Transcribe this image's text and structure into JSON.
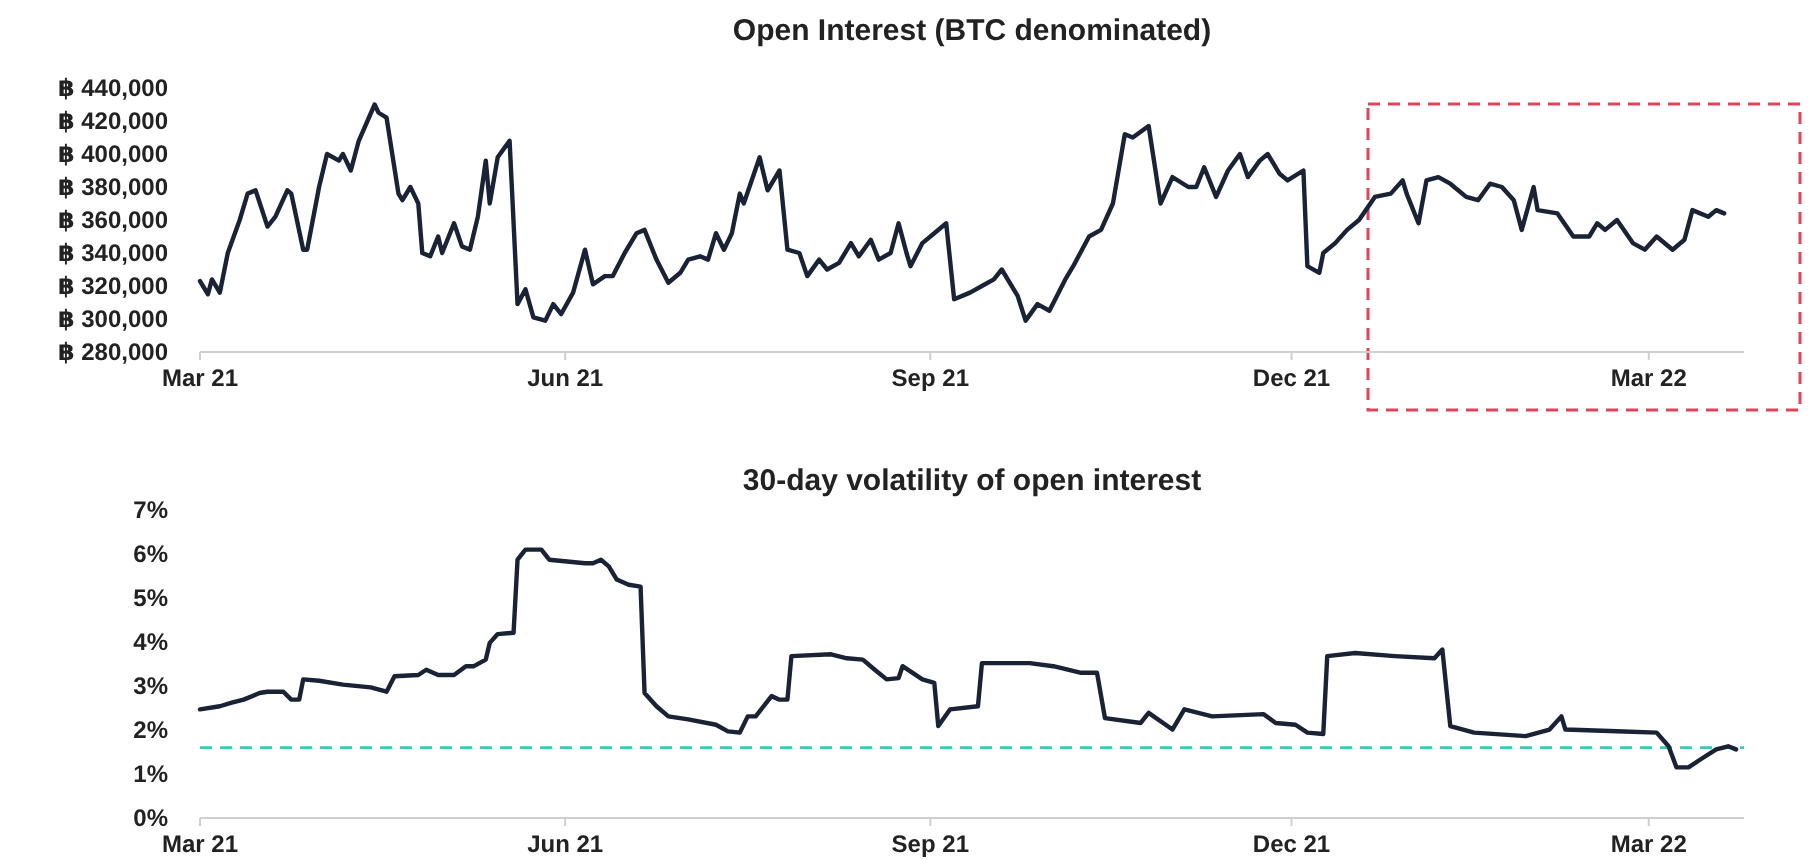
{
  "chart_data": [
    {
      "type": "line",
      "title": "Open Interest (BTC denominated)",
      "x": [
        "2021-03-01",
        "2021-03-03",
        "2021-03-04",
        "2021-03-06",
        "2021-03-08",
        "2021-03-11",
        "2021-03-13",
        "2021-03-15",
        "2021-03-18",
        "2021-03-20",
        "2021-03-23",
        "2021-03-24",
        "2021-03-27",
        "2021-03-28",
        "2021-03-31",
        "2021-04-02",
        "2021-04-05",
        "2021-04-06",
        "2021-04-08",
        "2021-04-10",
        "2021-04-14",
        "2021-04-15",
        "2021-04-17",
        "2021-04-20",
        "2021-04-21",
        "2021-04-23",
        "2021-04-25",
        "2021-04-26",
        "2021-04-28",
        "2021-04-30",
        "2021-05-01",
        "2021-05-04",
        "2021-05-06",
        "2021-05-08",
        "2021-05-10",
        "2021-05-12",
        "2021-05-13",
        "2021-05-15",
        "2021-05-18",
        "2021-05-20",
        "2021-05-22",
        "2021-05-24",
        "2021-05-27",
        "2021-05-29",
        "2021-05-31",
        "2021-06-03",
        "2021-06-06",
        "2021-06-08",
        "2021-06-11",
        "2021-06-13",
        "2021-06-16",
        "2021-06-19",
        "2021-06-21",
        "2021-06-24",
        "2021-06-27",
        "2021-06-30",
        "2021-07-02",
        "2021-07-05",
        "2021-07-07",
        "2021-07-09",
        "2021-07-11",
        "2021-07-13",
        "2021-07-15",
        "2021-07-16",
        "2021-07-20",
        "2021-07-22",
        "2021-07-25",
        "2021-07-27",
        "2021-07-30",
        "2021-08-01",
        "2021-08-04",
        "2021-08-06",
        "2021-08-09",
        "2021-08-12",
        "2021-08-14",
        "2021-08-17",
        "2021-08-19",
        "2021-08-22",
        "2021-08-24",
        "2021-08-26",
        "2021-08-27",
        "2021-08-30",
        "2021-09-02",
        "2021-09-05",
        "2021-09-07",
        "2021-09-11",
        "2021-09-14",
        "2021-09-17",
        "2021-09-19",
        "2021-09-23",
        "2021-09-25",
        "2021-09-28",
        "2021-10-01",
        "2021-10-05",
        "2021-10-07",
        "2021-10-11",
        "2021-10-14",
        "2021-10-17",
        "2021-10-20",
        "2021-10-22",
        "2021-10-26",
        "2021-10-29",
        "2021-11-01",
        "2021-11-05",
        "2021-11-07",
        "2021-11-09",
        "2021-11-12",
        "2021-11-15",
        "2021-11-18",
        "2021-11-20",
        "2021-11-23",
        "2021-11-25",
        "2021-11-28",
        "2021-11-30",
        "2021-12-04",
        "2021-12-05",
        "2021-12-08",
        "2021-12-09",
        "2021-12-12",
        "2021-12-15",
        "2021-12-18",
        "2021-12-22",
        "2021-12-26",
        "2021-12-29",
        "2021-12-30",
        "2022-01-02",
        "2022-01-04",
        "2022-01-07",
        "2022-01-10",
        "2022-01-14",
        "2022-01-17",
        "2022-01-20",
        "2022-01-23",
        "2022-01-26",
        "2022-01-28",
        "2022-01-31",
        "2022-02-01",
        "2022-02-06",
        "2022-02-10",
        "2022-02-14",
        "2022-02-16",
        "2022-02-18",
        "2022-02-21",
        "2022-02-25",
        "2022-02-28",
        "2022-03-03",
        "2022-03-07",
        "2022-03-10",
        "2022-03-12",
        "2022-03-16",
        "2022-03-18",
        "2022-03-20"
      ],
      "series": [
        {
          "color": "#1a2236",
          "values": [
            323000,
            315000,
            324000,
            316000,
            340000,
            360000,
            376000,
            378000,
            356000,
            362000,
            378000,
            376000,
            342000,
            342000,
            380000,
            400000,
            396000,
            400000,
            390000,
            408000,
            430000,
            425000,
            422000,
            376000,
            372000,
            380000,
            370000,
            340000,
            338000,
            350000,
            340000,
            358000,
            344000,
            342000,
            362000,
            396000,
            370000,
            398000,
            408000,
            309000,
            318000,
            301000,
            299000,
            309000,
            303000,
            316000,
            342000,
            321000,
            326000,
            326000,
            340000,
            352000,
            354000,
            336000,
            322000,
            328000,
            336000,
            338000,
            336000,
            352000,
            342000,
            352000,
            376000,
            370000,
            398000,
            378000,
            390000,
            342000,
            340000,
            326000,
            336000,
            330000,
            334000,
            346000,
            338000,
            348000,
            336000,
            340000,
            358000,
            340000,
            332000,
            346000,
            352000,
            358000,
            312000,
            316000,
            320000,
            324000,
            330000,
            314000,
            299000,
            309000,
            305000,
            324000,
            332000,
            350000,
            354000,
            370000,
            412000,
            410000,
            417000,
            370000,
            386000,
            380000,
            380000,
            392000,
            374000,
            390000,
            400000,
            386000,
            396000,
            400000,
            388000,
            384000,
            390000,
            332000,
            328000,
            340000,
            346000,
            354000,
            360000,
            374000,
            376000,
            384000,
            376000,
            358000,
            384000,
            386000,
            382000,
            374000,
            372000,
            382000,
            380000,
            372000,
            354000,
            380000,
            366000,
            364000,
            350000,
            350000,
            358000,
            354000,
            360000,
            346000,
            342000,
            350000,
            342000,
            348000,
            366000,
            362000,
            366000,
            364000
          ]
        }
      ],
      "xlim": [
        "2021-03-01",
        "2022-03-25"
      ],
      "xticks": [
        {
          "value": "2021-03-01",
          "label": "Mar 21"
        },
        {
          "value": "2021-06-01",
          "label": "Jun 21"
        },
        {
          "value": "2021-09-01",
          "label": "Sep 21"
        },
        {
          "value": "2021-12-01",
          "label": "Dec 21"
        },
        {
          "value": "2022-03-01",
          "label": "Mar 22"
        }
      ],
      "ylim": [
        280000,
        440000
      ],
      "yticks": [
        {
          "value": 280000,
          "label": "฿ 280,000"
        },
        {
          "value": 300000,
          "label": "฿ 300,000"
        },
        {
          "value": 320000,
          "label": "฿ 320,000"
        },
        {
          "value": 340000,
          "label": "฿ 340,000"
        },
        {
          "value": 360000,
          "label": "฿ 360,000"
        },
        {
          "value": 380000,
          "label": "฿ 380,000"
        },
        {
          "value": 400000,
          "label": "฿ 400,000"
        },
        {
          "value": 420000,
          "label": "฿ 420,000"
        },
        {
          "value": 440000,
          "label": "฿ 440,000"
        }
      ]
    },
    {
      "type": "line",
      "title": "30-day volatility of open interest",
      "x": [
        "2021-03-01",
        "2021-03-06",
        "2021-03-09",
        "2021-03-12",
        "2021-03-16",
        "2021-03-18",
        "2021-03-22",
        "2021-03-24",
        "2021-03-26",
        "2021-03-27",
        "2021-03-31",
        "2021-04-06",
        "2021-04-13",
        "2021-04-17",
        "2021-04-19",
        "2021-04-25",
        "2021-04-27",
        "2021-04-30",
        "2021-05-04",
        "2021-05-07",
        "2021-05-09",
        "2021-05-12",
        "2021-05-13",
        "2021-05-15",
        "2021-05-19",
        "2021-05-20",
        "2021-05-22",
        "2021-05-26",
        "2021-05-28",
        "2021-06-06",
        "2021-06-08",
        "2021-06-10",
        "2021-06-12",
        "2021-06-14",
        "2021-06-17",
        "2021-06-20",
        "2021-06-21",
        "2021-06-24",
        "2021-06-27",
        "2021-07-02",
        "2021-07-09",
        "2021-07-12",
        "2021-07-15",
        "2021-07-17",
        "2021-07-19",
        "2021-07-23",
        "2021-07-25",
        "2021-07-27",
        "2021-07-28",
        "2021-08-07",
        "2021-08-11",
        "2021-08-15",
        "2021-08-18",
        "2021-08-21",
        "2021-08-24",
        "2021-08-25",
        "2021-08-30",
        "2021-09-02",
        "2021-09-03",
        "2021-09-06",
        "2021-09-13",
        "2021-09-14",
        "2021-09-26",
        "2021-10-02",
        "2021-10-09",
        "2021-10-13",
        "2021-10-15",
        "2021-10-24",
        "2021-10-26",
        "2021-11-01",
        "2021-11-04",
        "2021-11-11",
        "2021-11-24",
        "2021-11-27",
        "2021-12-02",
        "2021-12-05",
        "2021-12-09",
        "2021-12-10",
        "2021-12-17",
        "2021-12-27",
        "2022-01-06",
        "2022-01-08",
        "2022-01-10",
        "2022-01-16",
        "2022-01-29",
        "2022-02-04",
        "2022-02-07",
        "2022-02-08",
        "2022-02-21",
        "2022-03-03",
        "2022-03-06",
        "2022-03-08",
        "2022-03-11",
        "2022-03-14",
        "2022-03-18",
        "2022-03-21",
        "2022-03-23"
      ],
      "series": [
        {
          "color": "#1a2236",
          "values": [
            2.47,
            2.54,
            2.62,
            2.69,
            2.84,
            2.87,
            2.87,
            2.69,
            2.69,
            3.15,
            3.12,
            3.03,
            2.97,
            2.87,
            3.22,
            3.25,
            3.37,
            3.25,
            3.25,
            3.45,
            3.45,
            3.6,
            3.98,
            4.18,
            4.21,
            5.87,
            6.1,
            6.1,
            5.87,
            5.79,
            5.79,
            5.87,
            5.72,
            5.42,
            5.3,
            5.26,
            2.84,
            2.54,
            2.31,
            2.24,
            2.12,
            1.97,
            1.94,
            2.31,
            2.31,
            2.77,
            2.69,
            2.69,
            3.68,
            3.72,
            3.63,
            3.6,
            3.37,
            3.15,
            3.18,
            3.45,
            3.15,
            3.07,
            2.09,
            2.47,
            2.54,
            3.52,
            3.52,
            3.45,
            3.3,
            3.3,
            2.27,
            2.16,
            2.39,
            2.01,
            2.47,
            2.31,
            2.36,
            2.16,
            2.12,
            1.94,
            1.91,
            3.68,
            3.75,
            3.68,
            3.63,
            3.83,
            2.09,
            1.94,
            1.86,
            2.01,
            2.31,
            2.01,
            1.97,
            1.94,
            1.63,
            1.15,
            1.15,
            1.33,
            1.56,
            1.63,
            1.56
          ]
        }
      ],
      "xlim": [
        "2021-03-01",
        "2022-03-25"
      ],
      "xticks": [
        {
          "value": "2021-03-01",
          "label": "Mar 21"
        },
        {
          "value": "2021-06-01",
          "label": "Jun 21"
        },
        {
          "value": "2021-09-01",
          "label": "Sep 21"
        },
        {
          "value": "2021-12-01",
          "label": "Dec 21"
        },
        {
          "value": "2022-03-01",
          "label": "Mar 22"
        }
      ],
      "ylim": [
        0,
        7
      ],
      "yticks": [
        {
          "value": 0,
          "label": "0%"
        },
        {
          "value": 1,
          "label": "1%"
        },
        {
          "value": 2,
          "label": "2%"
        },
        {
          "value": 3,
          "label": "3%"
        },
        {
          "value": 4,
          "label": "4%"
        },
        {
          "value": 5,
          "label": "5%"
        },
        {
          "value": 6,
          "label": "6%"
        },
        {
          "value": 7,
          "label": "7%"
        }
      ],
      "ref_lines": [
        {
          "axis": "y",
          "value": 1.6,
          "color": "#3cc8b4",
          "line_style": "dashed"
        }
      ]
    }
  ]
}
